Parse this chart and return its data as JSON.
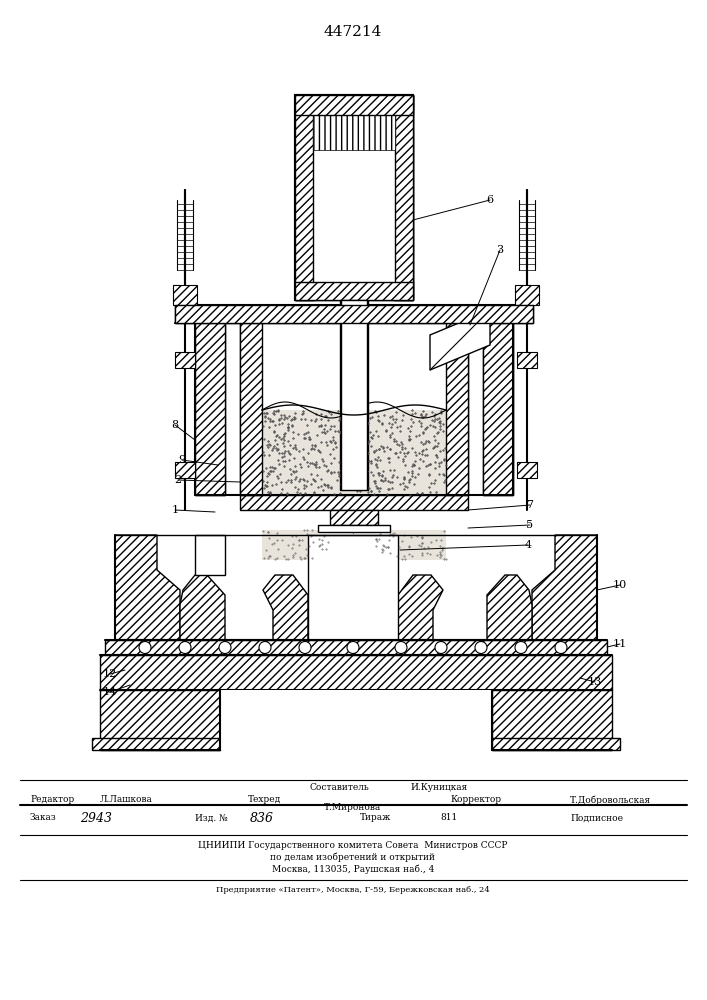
{
  "patent_number": "447214",
  "bg_color": "#ffffff",
  "footer": {
    "sostavitel_label": "Составитель",
    "sostavitel_name": "И.Куницкая",
    "redaktor_label": "Редактор",
    "redaktor_name": "Л.Лашкова",
    "tehred_label": "Техред",
    "tehred_name": "Т.Миронова",
    "korrektor_label": "Корректор",
    "korrektor_name": "Т.Добровольская",
    "zakaz_label": "Заказ",
    "zakaz_val": "2943",
    "izd_label": "Изд. №",
    "izd_val": "836",
    "tirazh_label": "Тираж",
    "tirazh_val": "811",
    "podpisnoe": "Подписное",
    "org1": "ЦНИИПИ Государственного комитета Совета  Министров СССР",
    "org2": "по делам изобретений и открытий",
    "org3": "Москва, 113035, Раушская наб., 4",
    "predp": "Предприятие «Патент», Москва, Г-59, Бережковская наб., 24"
  }
}
